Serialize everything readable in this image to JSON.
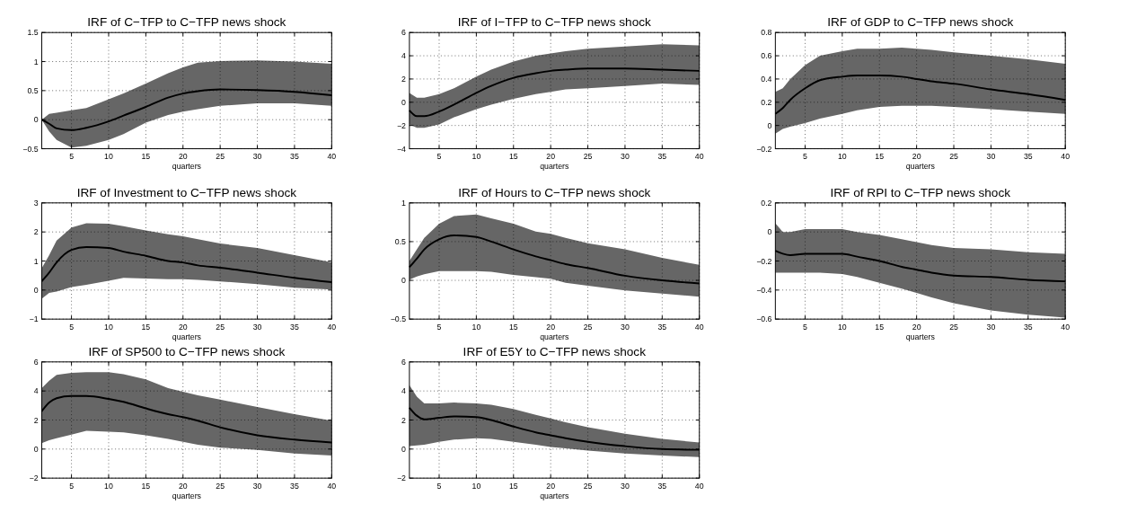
{
  "chart_data": [
    {
      "type": "line",
      "title": "IRF of C−TFP to C−TFP news shock",
      "xlabel": "quarters",
      "x": [
        1,
        2,
        3,
        5,
        7,
        10,
        12,
        15,
        18,
        20,
        22,
        25,
        30,
        35,
        40
      ],
      "xlim": [
        1,
        40
      ],
      "xticks": [
        5,
        10,
        15,
        20,
        25,
        30,
        35,
        40
      ],
      "ylim": [
        -0.5,
        1.5
      ],
      "yticks": [
        -0.5,
        0,
        0.5,
        1,
        1.5
      ],
      "grid": true,
      "series": [
        {
          "color": "#000000",
          "values": [
            0,
            -0.07,
            -0.15,
            -0.18,
            -0.14,
            -0.03,
            0.07,
            0.22,
            0.38,
            0.45,
            0.49,
            0.52,
            0.51,
            0.48,
            0.42
          ],
          "upper": [
            0,
            0.1,
            0.12,
            0.16,
            0.2,
            0.35,
            0.45,
            0.62,
            0.8,
            0.9,
            0.98,
            1.01,
            1.02,
            1.0,
            0.96
          ],
          "lower": [
            0,
            -0.2,
            -0.35,
            -0.48,
            -0.45,
            -0.35,
            -0.25,
            -0.05,
            0.08,
            0.14,
            0.18,
            0.24,
            0.28,
            0.28,
            0.24
          ]
        }
      ]
    },
    {
      "type": "line",
      "title": "IRF of I−TFP to C−TFP news shock",
      "xlabel": "quarters",
      "x": [
        1,
        2,
        3,
        5,
        7,
        10,
        12,
        15,
        18,
        20,
        22,
        25,
        30,
        35,
        40
      ],
      "xlim": [
        1,
        40
      ],
      "xticks": [
        5,
        10,
        15,
        20,
        25,
        30,
        35,
        40
      ],
      "ylim": [
        -4,
        6
      ],
      "yticks": [
        -4,
        -2,
        0,
        2,
        4,
        6
      ],
      "grid": true,
      "series": [
        {
          "color": "#000000",
          "values": [
            -0.7,
            -1.2,
            -1.2,
            -0.8,
            -0.2,
            0.8,
            1.4,
            2.1,
            2.5,
            2.7,
            2.8,
            2.9,
            2.9,
            2.8,
            2.7
          ],
          "upper": [
            0.8,
            0.4,
            0.4,
            0.7,
            1.2,
            2.2,
            2.8,
            3.5,
            4.0,
            4.2,
            4.4,
            4.6,
            4.8,
            5.0,
            4.9
          ],
          "lower": [
            -1.9,
            -2.2,
            -2.2,
            -1.9,
            -1.3,
            -0.6,
            -0.2,
            0.3,
            0.7,
            0.9,
            1.1,
            1.2,
            1.4,
            1.6,
            1.5
          ]
        }
      ]
    },
    {
      "type": "line",
      "title": "IRF of GDP to C−TFP news shock",
      "xlabel": "quarters",
      "x": [
        1,
        2,
        3,
        5,
        7,
        10,
        12,
        15,
        18,
        20,
        22,
        25,
        30,
        35,
        40
      ],
      "xlim": [
        1,
        40
      ],
      "xticks": [
        5,
        10,
        15,
        20,
        25,
        30,
        35,
        40
      ],
      "ylim": [
        -0.2,
        0.8
      ],
      "yticks": [
        -0.2,
        0,
        0.2,
        0.4,
        0.6,
        0.8
      ],
      "grid": true,
      "series": [
        {
          "color": "#000000",
          "values": [
            0.1,
            0.15,
            0.22,
            0.32,
            0.39,
            0.42,
            0.43,
            0.43,
            0.42,
            0.4,
            0.38,
            0.36,
            0.31,
            0.27,
            0.22
          ],
          "upper": [
            0.29,
            0.32,
            0.4,
            0.52,
            0.6,
            0.64,
            0.66,
            0.66,
            0.67,
            0.66,
            0.65,
            0.63,
            0.6,
            0.57,
            0.53
          ],
          "lower": [
            -0.07,
            -0.03,
            -0.01,
            0.02,
            0.06,
            0.1,
            0.13,
            0.16,
            0.17,
            0.17,
            0.17,
            0.16,
            0.14,
            0.12,
            0.1
          ]
        }
      ]
    },
    {
      "type": "line",
      "title": "IRF of Investment to C−TFP news shock",
      "xlabel": "quarters",
      "x": [
        1,
        2,
        3,
        5,
        7,
        10,
        12,
        15,
        18,
        20,
        22,
        25,
        30,
        35,
        40
      ],
      "xlim": [
        1,
        40
      ],
      "xticks": [
        5,
        10,
        15,
        20,
        25,
        30,
        35,
        40
      ],
      "ylim": [
        -1,
        3
      ],
      "yticks": [
        -1,
        0,
        1,
        2,
        3
      ],
      "grid": true,
      "series": [
        {
          "color": "#000000",
          "values": [
            0.3,
            0.6,
            0.95,
            1.38,
            1.48,
            1.45,
            1.32,
            1.18,
            1.0,
            0.95,
            0.85,
            0.77,
            0.6,
            0.42,
            0.27
          ],
          "upper": [
            0.75,
            1.2,
            1.7,
            2.15,
            2.3,
            2.28,
            2.2,
            2.05,
            1.92,
            1.85,
            1.75,
            1.6,
            1.45,
            1.2,
            0.95
          ],
          "lower": [
            -0.3,
            -0.1,
            -0.05,
            0.1,
            0.18,
            0.32,
            0.42,
            0.4,
            0.37,
            0.37,
            0.35,
            0.3,
            0.2,
            0.08,
            0.02
          ]
        }
      ]
    },
    {
      "type": "line",
      "title": "IRF of Hours to C−TFP news shock",
      "xlabel": "quarters",
      "x": [
        1,
        2,
        3,
        5,
        7,
        10,
        12,
        15,
        18,
        20,
        22,
        25,
        30,
        35,
        40
      ],
      "xlim": [
        1,
        40
      ],
      "xticks": [
        5,
        10,
        15,
        20,
        25,
        30,
        35,
        40
      ],
      "ylim": [
        -0.5,
        1
      ],
      "yticks": [
        -0.5,
        0,
        0.5,
        1
      ],
      "grid": true,
      "series": [
        {
          "color": "#000000",
          "values": [
            0.17,
            0.28,
            0.4,
            0.53,
            0.58,
            0.56,
            0.5,
            0.4,
            0.31,
            0.26,
            0.21,
            0.16,
            0.06,
            0.0,
            -0.04
          ],
          "upper": [
            0.25,
            0.4,
            0.55,
            0.73,
            0.83,
            0.85,
            0.8,
            0.73,
            0.63,
            0.6,
            0.55,
            0.48,
            0.4,
            0.29,
            0.2
          ],
          "lower": [
            0.01,
            0.05,
            0.08,
            0.12,
            0.12,
            0.12,
            0.11,
            0.07,
            0.04,
            0.02,
            -0.03,
            -0.07,
            -0.13,
            -0.17,
            -0.21
          ]
        }
      ]
    },
    {
      "type": "line",
      "title": "IRF of RPI to C−TFP news shock",
      "xlabel": "quarters",
      "x": [
        1,
        2,
        3,
        5,
        7,
        10,
        12,
        15,
        18,
        20,
        22,
        25,
        30,
        35,
        40
      ],
      "xlim": [
        1,
        40
      ],
      "xticks": [
        5,
        10,
        15,
        20,
        25,
        30,
        35,
        40
      ],
      "ylim": [
        -0.6,
        0.2
      ],
      "yticks": [
        -0.6,
        -0.4,
        -0.2,
        0,
        0.2
      ],
      "grid": true,
      "series": [
        {
          "color": "#000000",
          "values": [
            -0.13,
            -0.15,
            -0.16,
            -0.15,
            -0.15,
            -0.15,
            -0.17,
            -0.2,
            -0.24,
            -0.26,
            -0.28,
            -0.3,
            -0.31,
            -0.33,
            -0.34
          ],
          "upper": [
            0.06,
            0.0,
            0.0,
            0.02,
            0.02,
            0.02,
            0.0,
            -0.02,
            -0.05,
            -0.07,
            -0.09,
            -0.11,
            -0.12,
            -0.14,
            -0.15
          ],
          "lower": [
            -0.28,
            -0.28,
            -0.28,
            -0.28,
            -0.28,
            -0.29,
            -0.31,
            -0.35,
            -0.39,
            -0.42,
            -0.45,
            -0.49,
            -0.54,
            -0.57,
            -0.59
          ]
        }
      ]
    },
    {
      "type": "line",
      "title": "IRF of SP500 to C−TFP news shock",
      "xlabel": "quarters",
      "x": [
        1,
        2,
        3,
        5,
        7,
        10,
        12,
        15,
        18,
        20,
        22,
        25,
        30,
        35,
        40
      ],
      "xlim": [
        1,
        40
      ],
      "xticks": [
        5,
        10,
        15,
        20,
        25,
        30,
        35,
        40
      ],
      "ylim": [
        -2,
        6
      ],
      "yticks": [
        -2,
        0,
        2,
        4,
        6
      ],
      "grid": true,
      "series": [
        {
          "color": "#000000",
          "values": [
            2.6,
            3.2,
            3.5,
            3.65,
            3.65,
            3.45,
            3.25,
            2.8,
            2.4,
            2.2,
            1.95,
            1.5,
            0.95,
            0.65,
            0.45
          ],
          "upper": [
            4.2,
            4.7,
            5.1,
            5.25,
            5.3,
            5.3,
            5.15,
            4.8,
            4.2,
            3.95,
            3.7,
            3.4,
            2.9,
            2.4,
            1.95
          ],
          "lower": [
            0.4,
            0.6,
            0.75,
            1.0,
            1.25,
            1.2,
            1.15,
            0.95,
            0.7,
            0.5,
            0.3,
            0.1,
            -0.05,
            -0.3,
            -0.45
          ]
        }
      ]
    },
    {
      "type": "line",
      "title": "IRF of E5Y to C−TFP news shock",
      "xlabel": "quarters",
      "x": [
        1,
        2,
        3,
        5,
        7,
        10,
        12,
        15,
        18,
        20,
        22,
        25,
        30,
        35,
        40
      ],
      "xlim": [
        1,
        40
      ],
      "xticks": [
        5,
        10,
        15,
        20,
        25,
        30,
        35,
        40
      ],
      "ylim": [
        -2,
        6
      ],
      "yticks": [
        -2,
        0,
        2,
        4,
        6
      ],
      "grid": true,
      "series": [
        {
          "color": "#000000",
          "values": [
            2.85,
            2.3,
            2.05,
            2.15,
            2.25,
            2.2,
            2.0,
            1.55,
            1.15,
            0.95,
            0.75,
            0.5,
            0.2,
            0.0,
            -0.05
          ],
          "upper": [
            4.4,
            3.6,
            3.15,
            3.15,
            3.2,
            3.15,
            3.05,
            2.75,
            2.35,
            2.1,
            1.85,
            1.5,
            1.05,
            0.7,
            0.45
          ],
          "lower": [
            0.2,
            0.25,
            0.3,
            0.5,
            0.65,
            0.75,
            0.7,
            0.5,
            0.3,
            0.15,
            0.05,
            -0.1,
            -0.3,
            -0.45,
            -0.55
          ]
        }
      ]
    }
  ]
}
